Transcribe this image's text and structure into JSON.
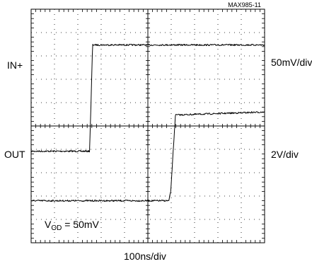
{
  "chart_data": {
    "type": "line",
    "figure_id": "MAX985-11",
    "x_axis": {
      "scale": "100ns/div",
      "divisions": 10,
      "range_ns": [
        0,
        1000
      ]
    },
    "grid": true,
    "channels": [
      {
        "name": "IN+",
        "scale": "50mV/div",
        "x_ns": [
          0,
          250,
          257,
          263,
          1000
        ],
        "level_div_from_top": [
          6.08,
          6.08,
          3.9,
          1.53,
          1.53
        ]
      },
      {
        "name": "OUT",
        "scale": "2V/div",
        "x_ns": [
          0,
          590,
          598,
          618,
          1000
        ],
        "level_div_from_top": [
          8.2,
          8.2,
          7.8,
          4.53,
          4.4
        ]
      }
    ],
    "annotation": {
      "main": "V",
      "sub": "OD",
      "rest": " = 50mV"
    }
  }
}
